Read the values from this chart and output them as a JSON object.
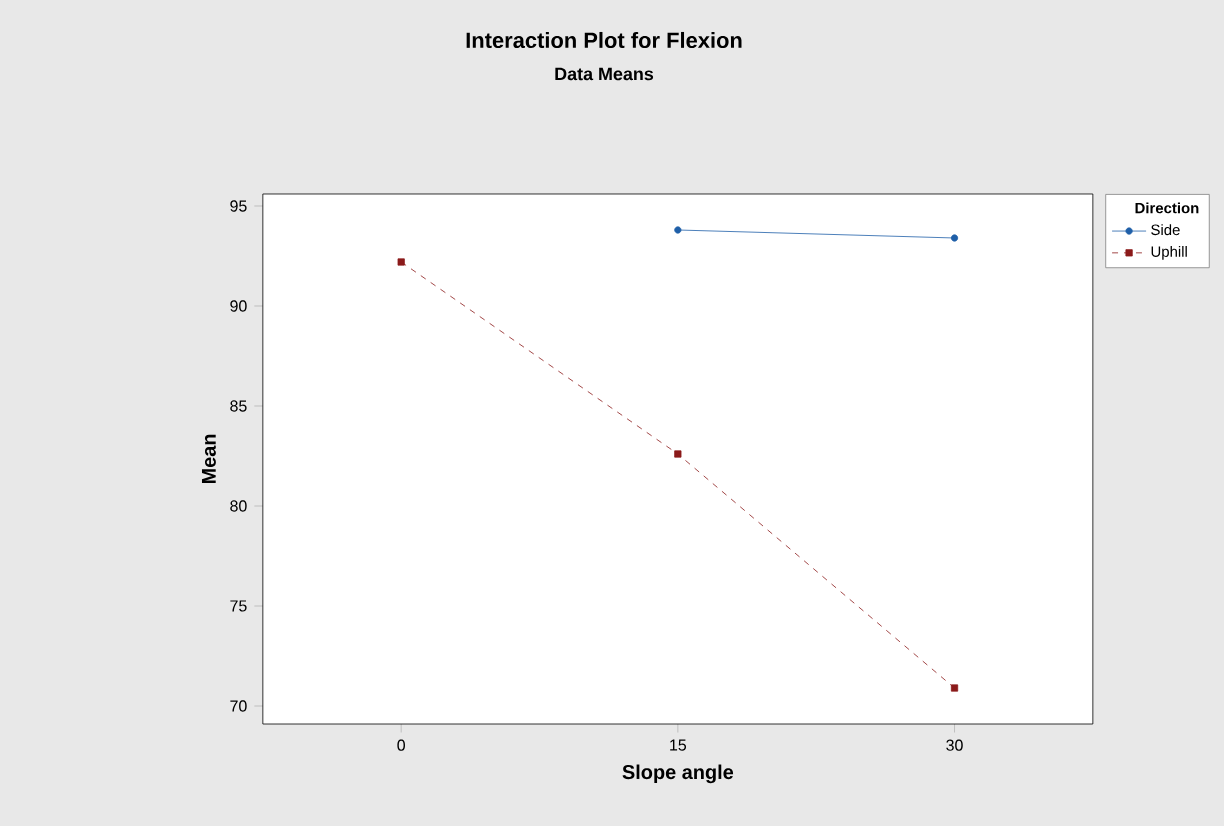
{
  "chart_data": {
    "type": "line",
    "title": "Interaction Plot for Flexion",
    "subtitle": "Data Means",
    "xlabel": "Slope angle",
    "ylabel": "Mean",
    "legend_title": "Direction",
    "categories": [
      "0",
      "15",
      "30"
    ],
    "series": [
      {
        "name": "Side",
        "color": "#1f5fa8",
        "marker": "circle",
        "line_style": "solid",
        "values": [
          null,
          93.8,
          93.4
        ]
      },
      {
        "name": "Uphill",
        "color": "#8b1a1a",
        "marker": "square",
        "line_style": "dashed",
        "values": [
          92.2,
          82.6,
          70.9
        ]
      }
    ],
    "ylim": [
      69.1,
      95.6
    ],
    "yticks": [
      70,
      75,
      80,
      85,
      90,
      95
    ],
    "legend": "top right",
    "grid": false
  }
}
